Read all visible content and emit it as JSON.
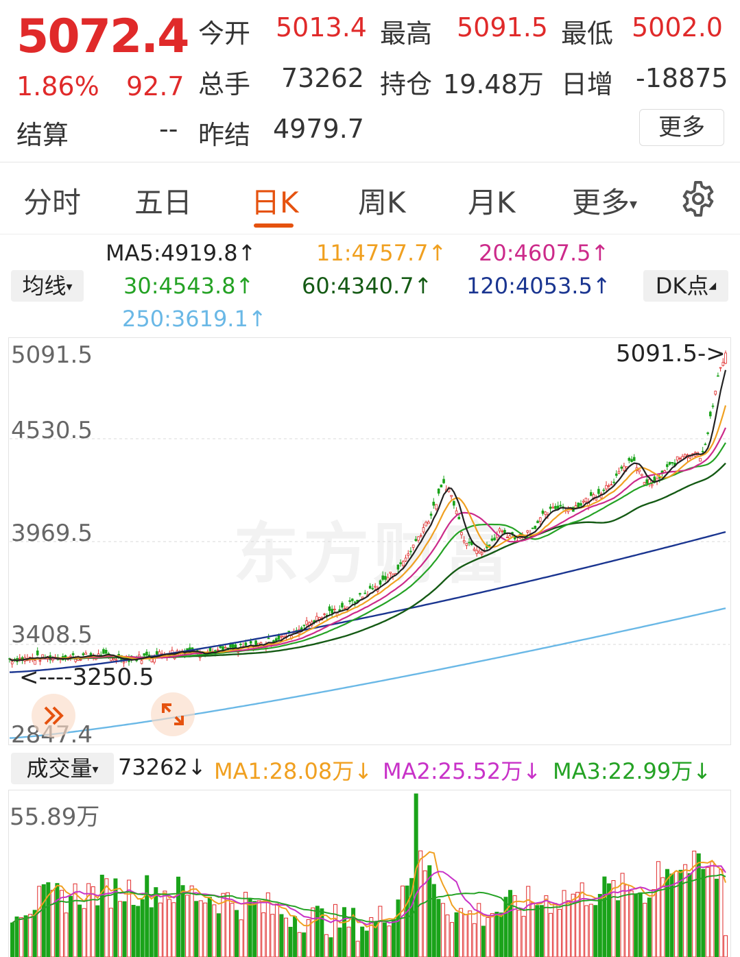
{
  "quote": {
    "price": "5072.4",
    "change_pct": "1.86%",
    "change": "92.7",
    "settle_label": "结算",
    "settle_value": "--",
    "open_label": "今开",
    "open_value": "5013.4",
    "high_label": "最高",
    "high_value": "5091.5",
    "low_label": "最低",
    "low_value": "5002.0",
    "volume_label": "总手",
    "volume_value": "73262",
    "oi_label": "持仓",
    "oi_value": "19.48万",
    "daily_inc_label": "日增",
    "daily_inc_value": "-18875",
    "prev_settle_label": "昨结",
    "prev_settle_value": "4979.7",
    "more_button": "更多"
  },
  "tabs": {
    "items": [
      {
        "label": "分时"
      },
      {
        "label": "五日"
      },
      {
        "label": "日K"
      },
      {
        "label": "周K"
      },
      {
        "label": "月K"
      },
      {
        "label": "更多"
      }
    ],
    "active": "日K",
    "more_caret": "▾"
  },
  "ma_legend": {
    "dropdown_label": "均线",
    "dropdown_caret": "▾",
    "dk_label": "DK点",
    "dk_caret": "◢",
    "items": [
      {
        "text": "MA5:4919.8↑",
        "color": "#222222"
      },
      {
        "text": "11:4757.7↑",
        "color": "#f0a020"
      },
      {
        "text": "20:4607.5↑",
        "color": "#cc2a8a"
      },
      {
        "text": "30:4543.8↑",
        "color": "#24a224"
      },
      {
        "text": "60:4340.7↑",
        "color": "#145a14"
      },
      {
        "text": "120:4053.5↑",
        "color": "#1a3590"
      },
      {
        "text": "250:3619.1↑",
        "color": "#6ab8e6"
      }
    ]
  },
  "price_axis": {
    "labels": [
      "5091.5",
      "4530.5",
      "3969.5",
      "3408.5",
      "2847.4"
    ],
    "max_marker": "5091.5->",
    "min_marker": "<----3250.5"
  },
  "volume_legend": {
    "dropdown_label": "成交量",
    "dropdown_caret": "▾",
    "items": [
      {
        "text": "73262↓",
        "color": "#222222"
      },
      {
        "text": "MA1:28.08万↓",
        "color": "#f0a020"
      },
      {
        "text": "MA2:25.52万↓",
        "color": "#c832c8"
      },
      {
        "text": "MA3:22.99万↓",
        "color": "#24a224"
      }
    ],
    "axis_max": "55.89万"
  },
  "colors": {
    "up": "#e02a2a",
    "down": "#1aa31a",
    "accent": "#e5520f",
    "ma5": "#222222",
    "ma11": "#f0a020",
    "ma20": "#cc2a8a",
    "ma30": "#24a224",
    "ma60": "#145a14",
    "ma120": "#1a3590",
    "ma250": "#6ab8e6"
  },
  "icons": {
    "settings": "gear-icon",
    "expand_left": "double-chevron-icon",
    "fullscreen": "expand-arrows-icon"
  },
  "watermark": "东方财富",
  "chart_data": {
    "type": "candlestick",
    "y_range": [
      2847.4,
      5091.5
    ],
    "high": 5091.5,
    "low": 3250.5,
    "last": 5072.4,
    "ma_last": {
      "MA5": 4919.8,
      "MA11": 4757.7,
      "MA20": 4607.5,
      "MA30": 4543.8,
      "MA60": 4340.7,
      "MA120": 4053.5,
      "MA250": 3619.1
    },
    "volume_max": 558900,
    "volume_last": 73262,
    "volume_ma_last": {
      "MA1": 280800,
      "MA2": 255200,
      "MA3": 229900
    }
  }
}
